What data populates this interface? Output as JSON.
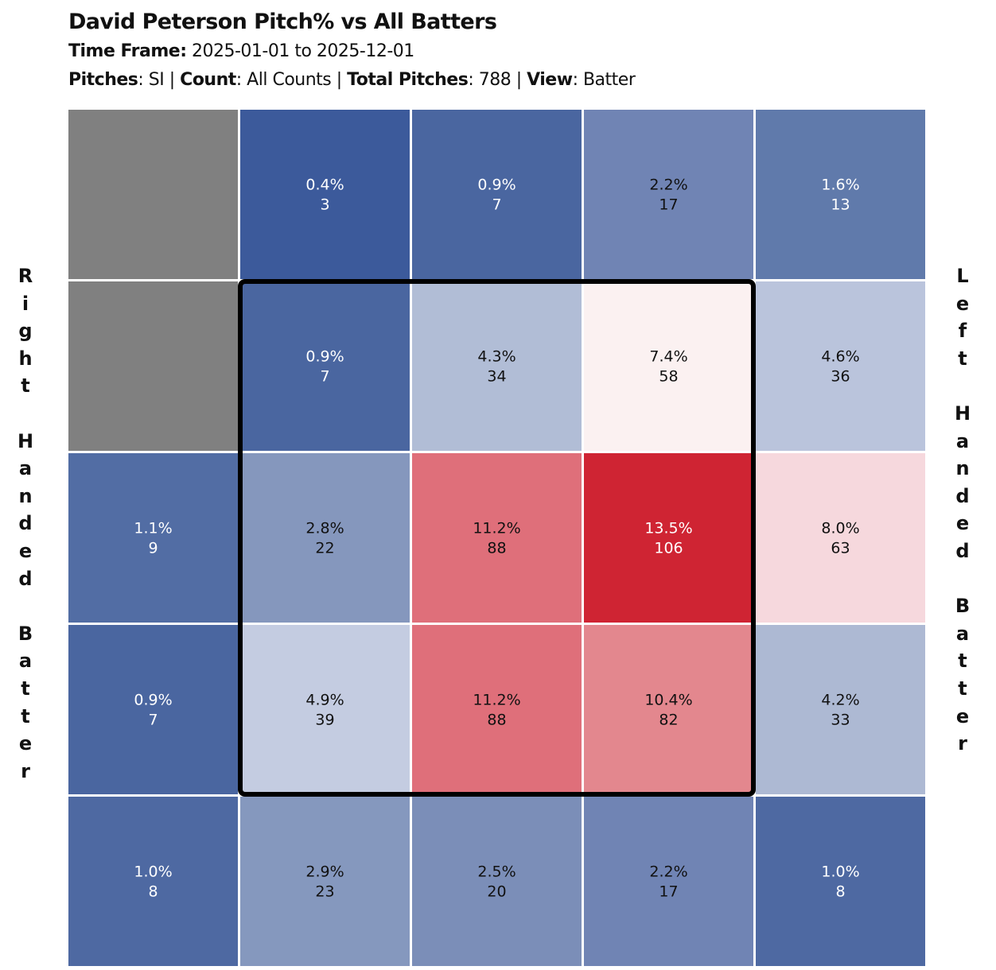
{
  "header": {
    "title": "David Peterson Pitch% vs All Batters",
    "time_frame_label": "Time Frame:",
    "time_frame_value": " 2025-01-01 to 2025-12-01",
    "pitches_label": "Pitches",
    "pitches_value": ": SI | ",
    "count_label": "Count",
    "count_value": ": All Counts | ",
    "total_label": "Total Pitches",
    "total_value": ": 788 | ",
    "view_label": "View",
    "view_value": ": Batter"
  },
  "left_label": "R\ni\ng\nh\nt\n\nH\na\nn\nd\ne\nd\n\nB\na\nt\nt\ne\nr",
  "right_label": "L\ne\nf\nt\n\nH\na\nn\nd\ne\nd\n\nB\na\nt\nt\ne\nr",
  "chart_data": {
    "type": "heatmap",
    "rows": 5,
    "cols": 5,
    "strike_zone": {
      "rows": [
        1,
        3
      ],
      "cols": [
        1,
        3
      ]
    },
    "colors": {
      "empty": "#808080",
      "strike_zone_border": "#000000",
      "grid_line": "#ffffff",
      "light_text": "#ffffff",
      "dark_text": "#111111"
    },
    "cells": [
      [
        {
          "empty": true,
          "color": "#808080"
        },
        {
          "pct": "0.4%",
          "count": 3,
          "color": "#3c5a9b",
          "text": "light"
        },
        {
          "pct": "0.9%",
          "count": 7,
          "color": "#4a66a0",
          "text": "light"
        },
        {
          "pct": "2.2%",
          "count": 17,
          "color": "#7084b4",
          "text": "dark"
        },
        {
          "pct": "1.6%",
          "count": 13,
          "color": "#607aab",
          "text": "light"
        }
      ],
      [
        {
          "empty": true,
          "color": "#808080"
        },
        {
          "pct": "0.9%",
          "count": 7,
          "color": "#4a66a0",
          "text": "light"
        },
        {
          "pct": "4.3%",
          "count": 34,
          "color": "#b1bdd6",
          "text": "dark"
        },
        {
          "pct": "7.4%",
          "count": 58,
          "color": "#fbf1f1",
          "text": "dark"
        },
        {
          "pct": "4.6%",
          "count": 36,
          "color": "#bac4dc",
          "text": "dark"
        }
      ],
      [
        {
          "pct": "1.1%",
          "count": 9,
          "color": "#526da4",
          "text": "light"
        },
        {
          "pct": "2.8%",
          "count": 22,
          "color": "#8597bd",
          "text": "dark"
        },
        {
          "pct": "11.2%",
          "count": 88,
          "color": "#df6f7a",
          "text": "dark"
        },
        {
          "pct": "13.5%",
          "count": 106,
          "color": "#cf2433",
          "text": "light"
        },
        {
          "pct": "8.0%",
          "count": 63,
          "color": "#f6d8dd",
          "text": "dark"
        }
      ],
      [
        {
          "pct": "0.9%",
          "count": 7,
          "color": "#4a66a0",
          "text": "light"
        },
        {
          "pct": "4.9%",
          "count": 39,
          "color": "#c4cce1",
          "text": "dark"
        },
        {
          "pct": "11.2%",
          "count": 88,
          "color": "#df6f7a",
          "text": "dark"
        },
        {
          "pct": "10.4%",
          "count": 82,
          "color": "#e3878e",
          "text": "dark"
        },
        {
          "pct": "4.2%",
          "count": 33,
          "color": "#adb9d3",
          "text": "dark"
        }
      ],
      [
        {
          "pct": "1.0%",
          "count": 8,
          "color": "#4e69a2",
          "text": "light"
        },
        {
          "pct": "2.9%",
          "count": 23,
          "color": "#8598be",
          "text": "dark"
        },
        {
          "pct": "2.5%",
          "count": 20,
          "color": "#7b8eb8",
          "text": "dark"
        },
        {
          "pct": "2.2%",
          "count": 17,
          "color": "#7084b4",
          "text": "dark"
        },
        {
          "pct": "1.0%",
          "count": 8,
          "color": "#4e69a2",
          "text": "light"
        }
      ]
    ]
  }
}
